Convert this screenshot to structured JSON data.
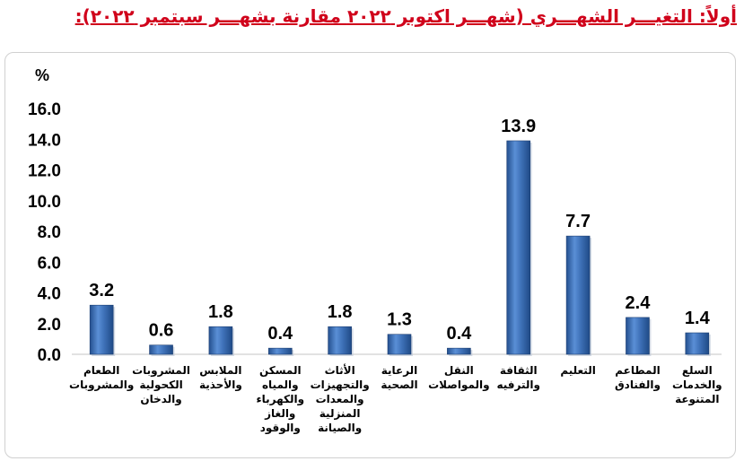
{
  "heading": "أولاً: التغيـــر الشهـــري (شهـــر اكتوبر ٢٠٢٢ مقارنة بشهـــر سبتمبر ٢٠٢٢):",
  "chart_data": {
    "type": "bar",
    "ylabel": "%",
    "ylim": [
      0,
      16
    ],
    "yticks": [
      "0.0",
      "2.0",
      "4.0",
      "6.0",
      "8.0",
      "10.0",
      "12.0",
      "14.0",
      "16.0"
    ],
    "grid": false,
    "bar_color": "#3f72b9",
    "categories": [
      [
        "الطعام",
        "والمشروبات"
      ],
      [
        "المشروبات",
        "الكحولية",
        "والدخان"
      ],
      [
        "الملابس",
        "والأحذية"
      ],
      [
        "المسكن",
        "والمياه",
        "والكهرباء",
        "والغاز",
        "والوقود"
      ],
      [
        "الأثاث",
        "والتجهيزات",
        "والمعدات",
        "المنزلية",
        "والصيانة"
      ],
      [
        "الرعاية",
        "الصحية"
      ],
      [
        "النقل",
        "والمواصلات"
      ],
      [
        "الثقافة",
        "والترفيه"
      ],
      [
        "التعليم"
      ],
      [
        "المطاعم",
        "والفنادق"
      ],
      [
        "السلع",
        "والخدمات",
        "المتنوعة"
      ]
    ],
    "values": [
      3.2,
      0.6,
      1.8,
      0.4,
      1.8,
      1.3,
      0.4,
      13.9,
      7.7,
      2.4,
      1.4
    ],
    "labels": [
      "3.2",
      "0.6",
      "1.8",
      "0.4",
      "1.8",
      "1.3",
      "0.4",
      "13.9",
      "7.7",
      "2.4",
      "1.4"
    ]
  }
}
